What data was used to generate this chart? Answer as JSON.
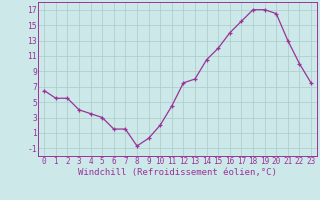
{
  "x": [
    0,
    1,
    2,
    3,
    4,
    5,
    6,
    7,
    8,
    9,
    10,
    11,
    12,
    13,
    14,
    15,
    16,
    17,
    18,
    19,
    20,
    21,
    22,
    23
  ],
  "y": [
    6.5,
    5.5,
    5.5,
    4.0,
    3.5,
    3.0,
    1.5,
    1.5,
    -0.7,
    0.3,
    2.0,
    4.5,
    7.5,
    8.0,
    10.5,
    12.0,
    14.0,
    15.5,
    17.0,
    17.0,
    16.5,
    13.0,
    10.0,
    7.5
  ],
  "xlabel": "Windchill (Refroidissement éolien,°C)",
  "xlim_min": -0.5,
  "xlim_max": 23.5,
  "ylim_min": -2,
  "ylim_max": 18,
  "yticks": [
    -1,
    1,
    3,
    5,
    7,
    9,
    11,
    13,
    15,
    17
  ],
  "xticks": [
    0,
    1,
    2,
    3,
    4,
    5,
    6,
    7,
    8,
    9,
    10,
    11,
    12,
    13,
    14,
    15,
    16,
    17,
    18,
    19,
    20,
    21,
    22,
    23
  ],
  "line_color": "#993399",
  "marker": "+",
  "bg_color": "#cce8e8",
  "grid_color": "#aacccc",
  "tick_fontsize": 5.5,
  "xlabel_fontsize": 6.5,
  "linewidth": 0.9,
  "markersize": 3.5
}
